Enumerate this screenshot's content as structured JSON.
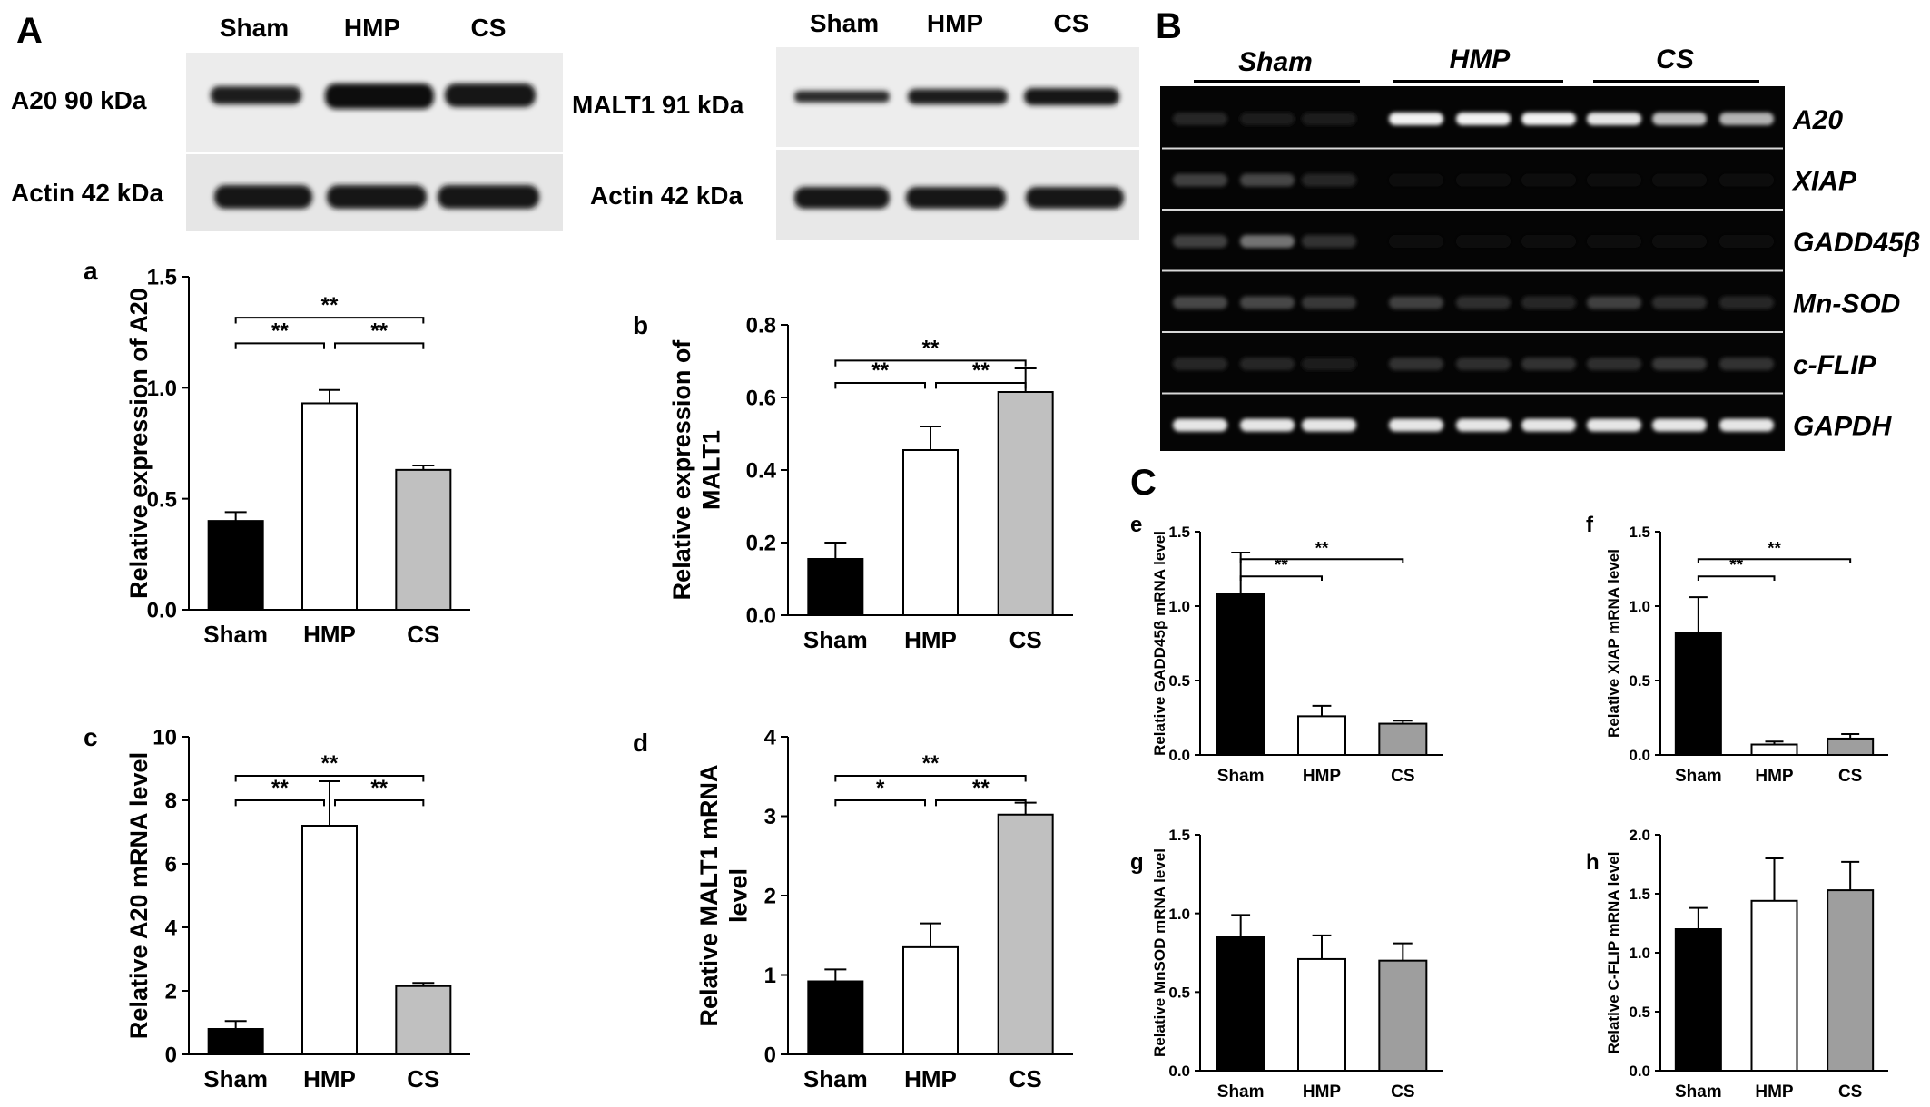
{
  "panel_labels": {
    "A": "A",
    "B": "B",
    "C": "C"
  },
  "blots": {
    "a20_blot": {
      "lanes": [
        "Sham",
        "HMP",
        "CS"
      ],
      "top_label": "A20 90  kDa",
      "bottom_label": "Actin 42 kDa"
    },
    "malt1_blot": {
      "lanes": [
        "Sham",
        "HMP",
        "CS"
      ],
      "top_label": "MALT1 91 kDa",
      "bottom_label": "Actin 42 kDa"
    }
  },
  "gel": {
    "groups": [
      "Sham",
      "HMP",
      "CS"
    ],
    "bands": [
      "A20",
      "XIAP",
      "GADD45β",
      "Mn-SOD",
      "c-FLIP",
      "GAPDH"
    ],
    "band_intensity": {
      "A20": [
        0.15,
        0.12,
        0.1,
        0.95,
        0.95,
        0.95,
        0.9,
        0.75,
        0.7
      ],
      "XIAP": [
        0.25,
        0.28,
        0.15,
        0.05,
        0.05,
        0.05,
        0.05,
        0.05,
        0.05
      ],
      "GADD45β": [
        0.25,
        0.45,
        0.2,
        0.05,
        0.06,
        0.05,
        0.05,
        0.05,
        0.05
      ],
      "Mn-SOD": [
        0.28,
        0.28,
        0.22,
        0.25,
        0.18,
        0.15,
        0.25,
        0.18,
        0.15
      ],
      "c-FLIP": [
        0.15,
        0.15,
        0.12,
        0.2,
        0.18,
        0.2,
        0.18,
        0.22,
        0.2
      ],
      "GAPDH": [
        0.9,
        0.9,
        0.9,
        0.9,
        0.9,
        0.9,
        0.9,
        0.9,
        0.9
      ]
    }
  },
  "colors": {
    "Sham": "#000000",
    "HMP": "#ffffff",
    "CS_light": "#c0c0c0",
    "CS_dark": "#9e9e9e"
  },
  "chart_data": [
    {
      "id": "a",
      "type": "bar",
      "label": "a",
      "categories": [
        "Sham",
        "HMP",
        "CS"
      ],
      "values": [
        0.4,
        0.93,
        0.63
      ],
      "errors": [
        0.04,
        0.06,
        0.02
      ],
      "ylabel": "Relative expression of A20",
      "ylim": [
        0,
        1.5
      ],
      "yticks": [
        "0.0",
        "0.5",
        "1.0",
        "1.5"
      ],
      "sig": [
        {
          "from": 0,
          "to": 1,
          "label": "**"
        },
        {
          "from": 1,
          "to": 2,
          "label": "**"
        },
        {
          "from": 0,
          "to": 2,
          "label": "**"
        }
      ]
    },
    {
      "id": "b",
      "type": "bar",
      "label": "b",
      "categories": [
        "Sham",
        "HMP",
        "CS"
      ],
      "values": [
        0.155,
        0.455,
        0.615
      ],
      "errors": [
        0.045,
        0.065,
        0.065
      ],
      "ylabel": [
        "Relative expression of",
        "MALT1"
      ],
      "ylim": [
        0,
        0.8
      ],
      "yticks": [
        "0.0",
        "0.2",
        "0.4",
        "0.6",
        "0.8"
      ],
      "sig": [
        {
          "from": 0,
          "to": 1,
          "label": "**"
        },
        {
          "from": 1,
          "to": 2,
          "label": "**"
        },
        {
          "from": 0,
          "to": 2,
          "label": "**"
        }
      ]
    },
    {
      "id": "c",
      "type": "bar",
      "label": "c",
      "categories": [
        "Sham",
        "HMP",
        "CS"
      ],
      "values": [
        0.8,
        7.2,
        2.15
      ],
      "errors": [
        0.25,
        1.4,
        0.1
      ],
      "ylabel": "Relative A20 mRNA  level",
      "ylim": [
        0,
        10
      ],
      "yticks": [
        "0",
        "2",
        "4",
        "6",
        "8",
        "10"
      ],
      "sig": [
        {
          "from": 0,
          "to": 1,
          "label": "**"
        },
        {
          "from": 1,
          "to": 2,
          "label": "**"
        },
        {
          "from": 0,
          "to": 2,
          "label": "**"
        }
      ]
    },
    {
      "id": "d",
      "type": "bar",
      "label": "d",
      "categories": [
        "Sham",
        "HMP",
        "CS"
      ],
      "values": [
        0.92,
        1.35,
        3.02
      ],
      "errors": [
        0.15,
        0.3,
        0.15
      ],
      "ylabel": [
        "Relative MALT1 mRNA",
        "level"
      ],
      "ylim": [
        0,
        4
      ],
      "yticks": [
        "0",
        "1",
        "2",
        "3",
        "4"
      ],
      "sig": [
        {
          "from": 0,
          "to": 1,
          "label": "*"
        },
        {
          "from": 1,
          "to": 2,
          "label": "**"
        },
        {
          "from": 0,
          "to": 2,
          "label": "**"
        }
      ]
    },
    {
      "id": "e",
      "type": "bar",
      "label": "e",
      "categories": [
        "Sham",
        "HMP",
        "CS"
      ],
      "values": [
        1.08,
        0.26,
        0.21
      ],
      "errors": [
        0.28,
        0.07,
        0.02
      ],
      "ylabel": "Relative GADD45β mRNA level",
      "ylim": [
        0,
        1.5
      ],
      "yticks": [
        "0.0",
        "0.5",
        "1.0",
        "1.5"
      ],
      "sig": [
        {
          "from": 0,
          "to": 1,
          "label": "**"
        },
        {
          "from": 0,
          "to": 2,
          "label": "**"
        }
      ]
    },
    {
      "id": "f",
      "type": "bar",
      "label": "f",
      "categories": [
        "Sham",
        "HMP",
        "CS"
      ],
      "values": [
        0.82,
        0.07,
        0.11
      ],
      "errors": [
        0.24,
        0.02,
        0.03
      ],
      "ylabel": "Relative XIAP mRNA  level",
      "ylim": [
        0,
        1.5
      ],
      "yticks": [
        "0.0",
        "0.5",
        "1.0",
        "1.5"
      ],
      "sig": [
        {
          "from": 0,
          "to": 1,
          "label": "**"
        },
        {
          "from": 0,
          "to": 2,
          "label": "**"
        }
      ]
    },
    {
      "id": "g",
      "type": "bar",
      "label": "g",
      "categories": [
        "Sham",
        "HMP",
        "CS"
      ],
      "values": [
        0.85,
        0.71,
        0.7
      ],
      "errors": [
        0.14,
        0.15,
        0.11
      ],
      "ylabel": "Relative MnSOD mRNA  level",
      "ylim": [
        0,
        1.5
      ],
      "yticks": [
        "0.0",
        "0.5",
        "1.0",
        "1.5"
      ],
      "sig": []
    },
    {
      "id": "h",
      "type": "bar",
      "label": "h",
      "categories": [
        "Sham",
        "HMP",
        "CS"
      ],
      "values": [
        1.2,
        1.44,
        1.53
      ],
      "errors": [
        0.18,
        0.36,
        0.24
      ],
      "ylabel": "Relative C-FLIP mRNA  level",
      "ylim": [
        0,
        2.0
      ],
      "yticks": [
        "0.0",
        "0.5",
        "1.0",
        "1.5",
        "2.0"
      ],
      "sig": []
    }
  ]
}
